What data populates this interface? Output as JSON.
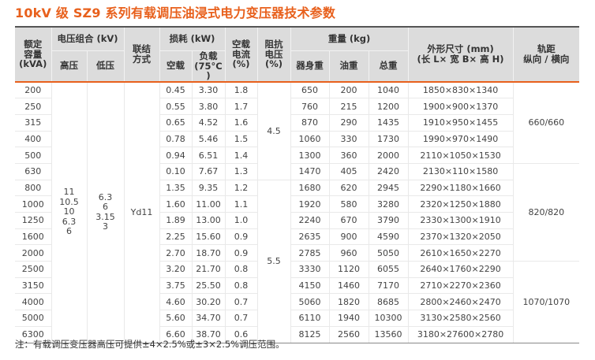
{
  "title": "10kV 级 SZ9 系列有载调压油浸式电力变压器技术参数",
  "header": {
    "capacity": "额定容量(kVA)",
    "capacity_lines": [
      "额定",
      "容量",
      "(kVA)"
    ],
    "voltage_group": "电压组合 (kV)",
    "hv": "高压",
    "lv": "低压",
    "connection_lines": [
      "联结",
      "方式"
    ],
    "loss_group": "损耗 (kW)",
    "noload_loss": "空载",
    "load_loss_lines": [
      "负载",
      "(75°C )"
    ],
    "noload_current_lines": [
      "空载",
      "电流",
      "(%)"
    ],
    "impedance_lines": [
      "阻抗",
      "电压",
      "(%)"
    ],
    "weight_group": "重量 (kg)",
    "body_weight": "器身重",
    "oil_weight": "油重",
    "total_weight": "总重",
    "dimensions_lines": [
      "外形尺寸 (mm)",
      "(长 L× 宽 B× 高 H)"
    ],
    "rail_lines": [
      "轨距",
      "纵向 / 横向"
    ]
  },
  "merged": {
    "hv_values": [
      "11",
      "10.5",
      "10",
      "6.3",
      "6"
    ],
    "lv_values": [
      "6.3",
      "6",
      "3.15",
      "3"
    ],
    "connection": "Yd11",
    "impedance_a": "4.5",
    "impedance_b": "5.5",
    "rail_a": "660/660",
    "rail_b": "820/820",
    "rail_c": "1070/1070"
  },
  "rows": [
    {
      "capacity": "200",
      "noload": "0.45",
      "load": "3.30",
      "current": "1.8",
      "body": "650",
      "oil": "200",
      "total": "1040",
      "dims": "1850×830×1340"
    },
    {
      "capacity": "250",
      "noload": "0.55",
      "load": "3.80",
      "current": "1.7",
      "body": "760",
      "oil": "215",
      "total": "1200",
      "dims": "1900×900×1370"
    },
    {
      "capacity": "315",
      "noload": "0.65",
      "load": "4.52",
      "current": "1.6",
      "body": "870",
      "oil": "290",
      "total": "1435",
      "dims": "1910×950×1455"
    },
    {
      "capacity": "400",
      "noload": "0.78",
      "load": "5.46",
      "current": "1.5",
      "body": "1060",
      "oil": "330",
      "total": "1730",
      "dims": "1990×970×1490"
    },
    {
      "capacity": "500",
      "noload": "0.94",
      "load": "6.51",
      "current": "1.4",
      "body": "1300",
      "oil": "360",
      "total": "2000",
      "dims": "2110×1050×1530"
    },
    {
      "capacity": "630",
      "noload": "0.10",
      "load": "7.67",
      "current": "1.3",
      "body": "1470",
      "oil": "405",
      "total": "2420",
      "dims": "2130×110×1580"
    },
    {
      "capacity": "800",
      "noload": "1.35",
      "load": "9.35",
      "current": "1.2",
      "body": "1680",
      "oil": "620",
      "total": "2945",
      "dims": "2290×1180×1660"
    },
    {
      "capacity": "1000",
      "noload": "1.60",
      "load": "11.00",
      "current": "1.1",
      "body": "1920",
      "oil": "580",
      "total": "3280",
      "dims": "2320×1250×1880"
    },
    {
      "capacity": "1250",
      "noload": "1.89",
      "load": "13.00",
      "current": "1.0",
      "body": "2240",
      "oil": "670",
      "total": "3790",
      "dims": "2330×1300×1910"
    },
    {
      "capacity": "1600",
      "noload": "2.25",
      "load": "15.60",
      "current": "0.9",
      "body": "2635",
      "oil": "900",
      "total": "4590",
      "dims": "2370×1320×2050"
    },
    {
      "capacity": "2000",
      "noload": "2.70",
      "load": "18.70",
      "current": "0.9",
      "body": "2785",
      "oil": "960",
      "total": "5050",
      "dims": "2610×1650×2270"
    },
    {
      "capacity": "2500",
      "noload": "3.20",
      "load": "21.70",
      "current": "0.8",
      "body": "3330",
      "oil": "1120",
      "total": "6055",
      "dims": "2640×1760×2290"
    },
    {
      "capacity": "3150",
      "noload": "3.75",
      "load": "25.50",
      "current": "0.8",
      "body": "4150",
      "oil": "1460",
      "total": "7170",
      "dims": "2710×2270×2360"
    },
    {
      "capacity": "4000",
      "noload": "4.60",
      "load": "30.20",
      "current": "0.7",
      "body": "5060",
      "oil": "1820",
      "total": "8685",
      "dims": "2800×2460×2470"
    },
    {
      "capacity": "5000",
      "noload": "5.60",
      "load": "34.70",
      "current": "0.7",
      "body": "6110",
      "oil": "1940",
      "total": "10300",
      "dims": "3130×2580×2560"
    },
    {
      "capacity": "6300",
      "noload": "6.60",
      "load": "38.70",
      "current": "0.6",
      "body": "8125",
      "oil": "2560",
      "total": "13560",
      "dims": "3180×27600×2780"
    }
  ],
  "note": "注：有载调压变压器高压可提供±4×2.5%或±3×2.5%调压范围。",
  "colors": {
    "title": "#e8601c",
    "header_bg": "#dcdcdc",
    "header_rule": "#e8601c",
    "top_rule": "#555555"
  }
}
